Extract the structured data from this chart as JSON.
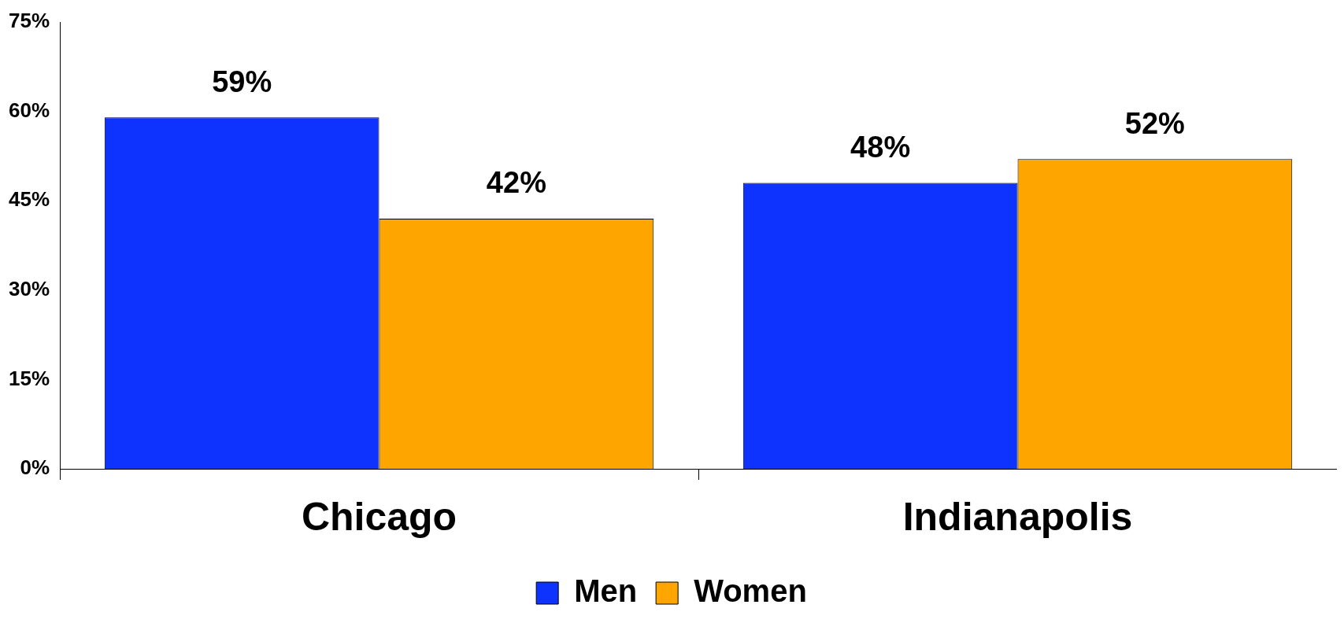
{
  "chart_data": {
    "type": "bar",
    "categories": [
      "Chicago",
      "Indianapolis"
    ],
    "series": [
      {
        "name": "Men",
        "color": "#0f33ff",
        "values": [
          59,
          48
        ]
      },
      {
        "name": "Women",
        "color": "#ffa500",
        "values": [
          42,
          52
        ]
      }
    ],
    "ylim": [
      0,
      75
    ],
    "yticks": [
      {
        "value": 0,
        "label": "0%"
      },
      {
        "value": 15,
        "label": "15%"
      },
      {
        "value": 30,
        "label": "30%"
      },
      {
        "value": 45,
        "label": "45%"
      },
      {
        "value": 60,
        "label": "60%"
      },
      {
        "value": 75,
        "label": "75%"
      }
    ],
    "value_labels": [
      [
        "59%",
        "48%"
      ],
      [
        "42%",
        "52%"
      ]
    ],
    "grid": false,
    "legend": "bottom"
  }
}
